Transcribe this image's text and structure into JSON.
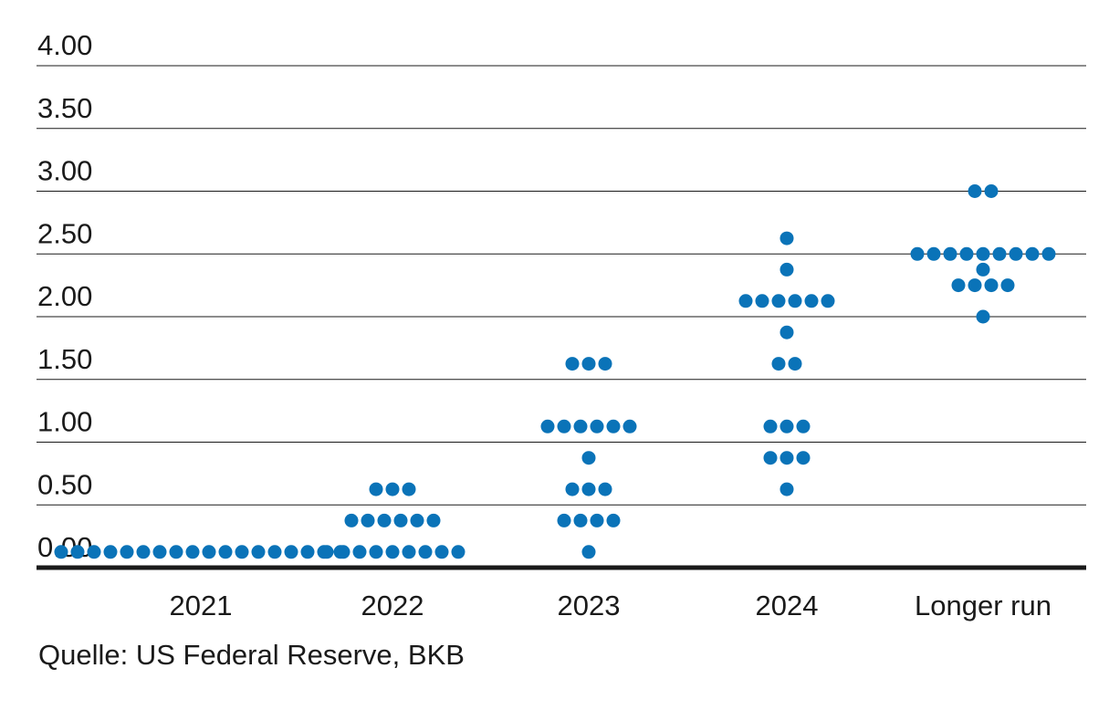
{
  "source_note": "Quelle: US Federal Reserve, BKB",
  "colors": {
    "dot": "#0a73b8",
    "grid": "#1a1a1a",
    "axis": "#1a1a1a",
    "text": "#1a1a1a"
  },
  "chart_data": {
    "type": "scatter",
    "title": "",
    "xlabel": "",
    "ylabel": "",
    "ylim": [
      0,
      4
    ],
    "yticks": [
      0.0,
      0.5,
      1.0,
      1.5,
      2.0,
      2.5,
      3.0,
      3.5,
      4.0
    ],
    "ytick_labels": [
      "0.00",
      "0.50",
      "1.00",
      "1.50",
      "2.00",
      "2.50",
      "3.00",
      "3.50",
      "4.00"
    ],
    "grid": true,
    "categories": [
      "2021",
      "2022",
      "2023",
      "2024",
      "Longer run"
    ],
    "dots": [
      {
        "category": "2021",
        "levels": [
          {
            "value": 0.125,
            "count": 18
          }
        ]
      },
      {
        "category": "2022",
        "levels": [
          {
            "value": 0.125,
            "count": 9
          },
          {
            "value": 0.375,
            "count": 6
          },
          {
            "value": 0.625,
            "count": 3
          }
        ]
      },
      {
        "category": "2023",
        "levels": [
          {
            "value": 0.125,
            "count": 1
          },
          {
            "value": 0.375,
            "count": 4
          },
          {
            "value": 0.625,
            "count": 3
          },
          {
            "value": 0.875,
            "count": 1
          },
          {
            "value": 1.125,
            "count": 6
          },
          {
            "value": 1.625,
            "count": 3
          }
        ]
      },
      {
        "category": "2024",
        "levels": [
          {
            "value": 0.625,
            "count": 1
          },
          {
            "value": 0.875,
            "count": 3
          },
          {
            "value": 1.125,
            "count": 3
          },
          {
            "value": 1.625,
            "count": 2
          },
          {
            "value": 1.875,
            "count": 1
          },
          {
            "value": 2.125,
            "count": 6
          },
          {
            "value": 2.375,
            "count": 1
          },
          {
            "value": 2.625,
            "count": 1
          }
        ]
      },
      {
        "category": "Longer run",
        "levels": [
          {
            "value": 2.0,
            "count": 1
          },
          {
            "value": 2.25,
            "count": 4
          },
          {
            "value": 2.375,
            "count": 1
          },
          {
            "value": 2.5,
            "count": 9
          },
          {
            "value": 3.0,
            "count": 2
          }
        ]
      }
    ]
  }
}
